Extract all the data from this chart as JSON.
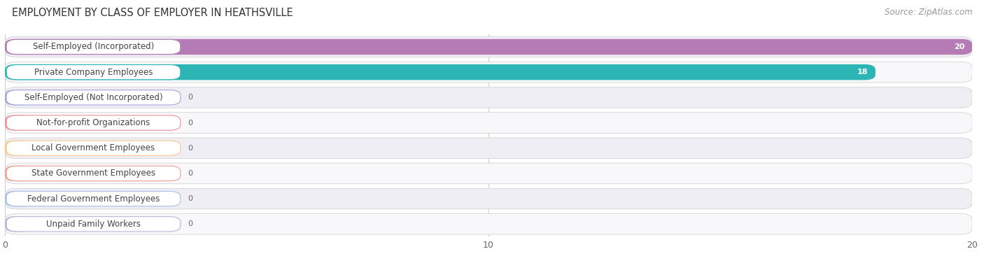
{
  "title": "EMPLOYMENT BY CLASS OF EMPLOYER IN HEATHSVILLE",
  "source": "Source: ZipAtlas.com",
  "categories": [
    "Self-Employed (Incorporated)",
    "Private Company Employees",
    "Self-Employed (Not Incorporated)",
    "Not-for-profit Organizations",
    "Local Government Employees",
    "State Government Employees",
    "Federal Government Employees",
    "Unpaid Family Workers"
  ],
  "values": [
    20,
    18,
    0,
    0,
    0,
    0,
    0,
    0
  ],
  "bar_colors": [
    "#b57bb5",
    "#2db5b5",
    "#a0a8e0",
    "#f0909a",
    "#f5c98a",
    "#f0a090",
    "#a8c0e8",
    "#c0b0d8"
  ],
  "row_bg_colors": [
    "#eeeef4",
    "#f8f8fb"
  ],
  "label_bg_color": "#ffffff",
  "label_border_colors": [
    "#b57bb5",
    "#2db5b5",
    "#a0a8e0",
    "#f0909a",
    "#f5c98a",
    "#f0a090",
    "#a8c0e8",
    "#c0b0d8"
  ],
  "xlim": [
    0,
    20
  ],
  "xticks": [
    0,
    10,
    20
  ],
  "title_fontsize": 10.5,
  "source_fontsize": 8.5,
  "tick_fontsize": 9,
  "label_fontsize": 8.5,
  "value_fontsize": 8,
  "background_color": "#ffffff"
}
